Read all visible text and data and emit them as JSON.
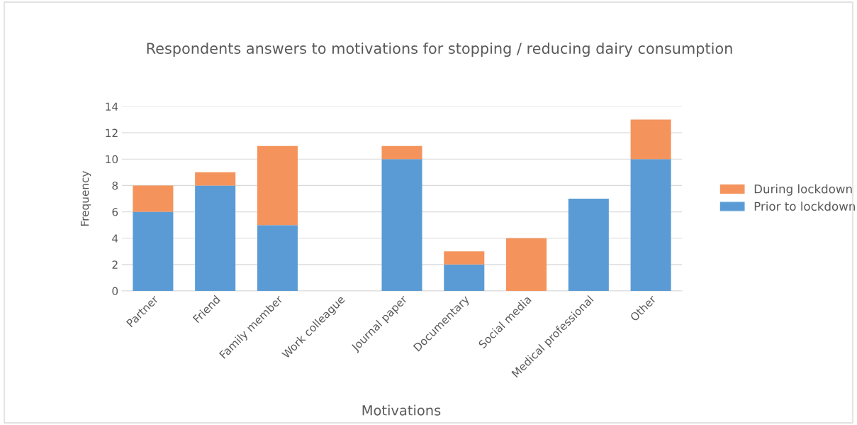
{
  "chart_data": {
    "type": "bar",
    "title": "Respondents answers to motivations for stopping / reducing dairy consumption",
    "xlabel": "Motivations",
    "ylabel": "Frequency",
    "categories": [
      "Partner",
      "Friend",
      "Family member",
      "Work colleague",
      "Journal paper",
      "Documentary",
      "Social media",
      "Medical professional",
      "Other"
    ],
    "series": [
      {
        "name": "Prior to lockdown",
        "color": "#5b9bd5",
        "values": [
          6,
          8,
          5,
          0,
          10,
          2,
          0,
          7,
          10
        ]
      },
      {
        "name": "During lockdown",
        "color": "#f4945c",
        "values": [
          2,
          1,
          6,
          0,
          1,
          1,
          4,
          0,
          3
        ]
      }
    ],
    "stacked": true,
    "ylim": [
      0,
      14
    ],
    "yticks": [
      0,
      2,
      4,
      6,
      8,
      10,
      12,
      14
    ],
    "grid": "y",
    "legend": "right"
  }
}
